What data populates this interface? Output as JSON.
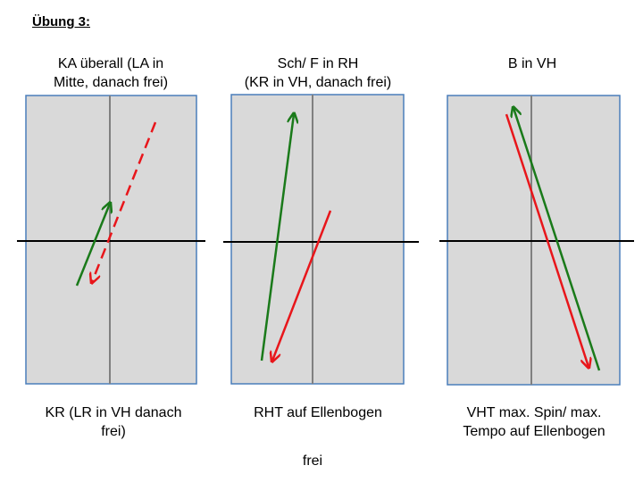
{
  "title": "Übung 3:",
  "panels": [
    {
      "top_label_line1": "KA überall (LA in",
      "top_label_line2": "Mitte, danach frei)",
      "bottom_label_line1": "KR (LR in VH danach",
      "bottom_label_line2": "frei)"
    },
    {
      "top_label_line1": "Sch/ F in RH",
      "top_label_line2": "(KR in VH, danach frei)",
      "bottom_label_line1": "RHT auf Ellenbogen",
      "bottom_label_line2": ""
    },
    {
      "top_label_line1": "B in VH",
      "top_label_line2": "",
      "bottom_label_line1": "VHT max. Spin/ max.",
      "bottom_label_line2": "Tempo auf Ellenbogen"
    }
  ],
  "footer": "frei",
  "colors": {
    "table_fill": "#d9d9d9",
    "table_border": "#4a7ebb",
    "center_line": "#808080",
    "net": "#000000",
    "green_arrow": "#1a7a1a",
    "red_arrow": "#e8161b"
  }
}
